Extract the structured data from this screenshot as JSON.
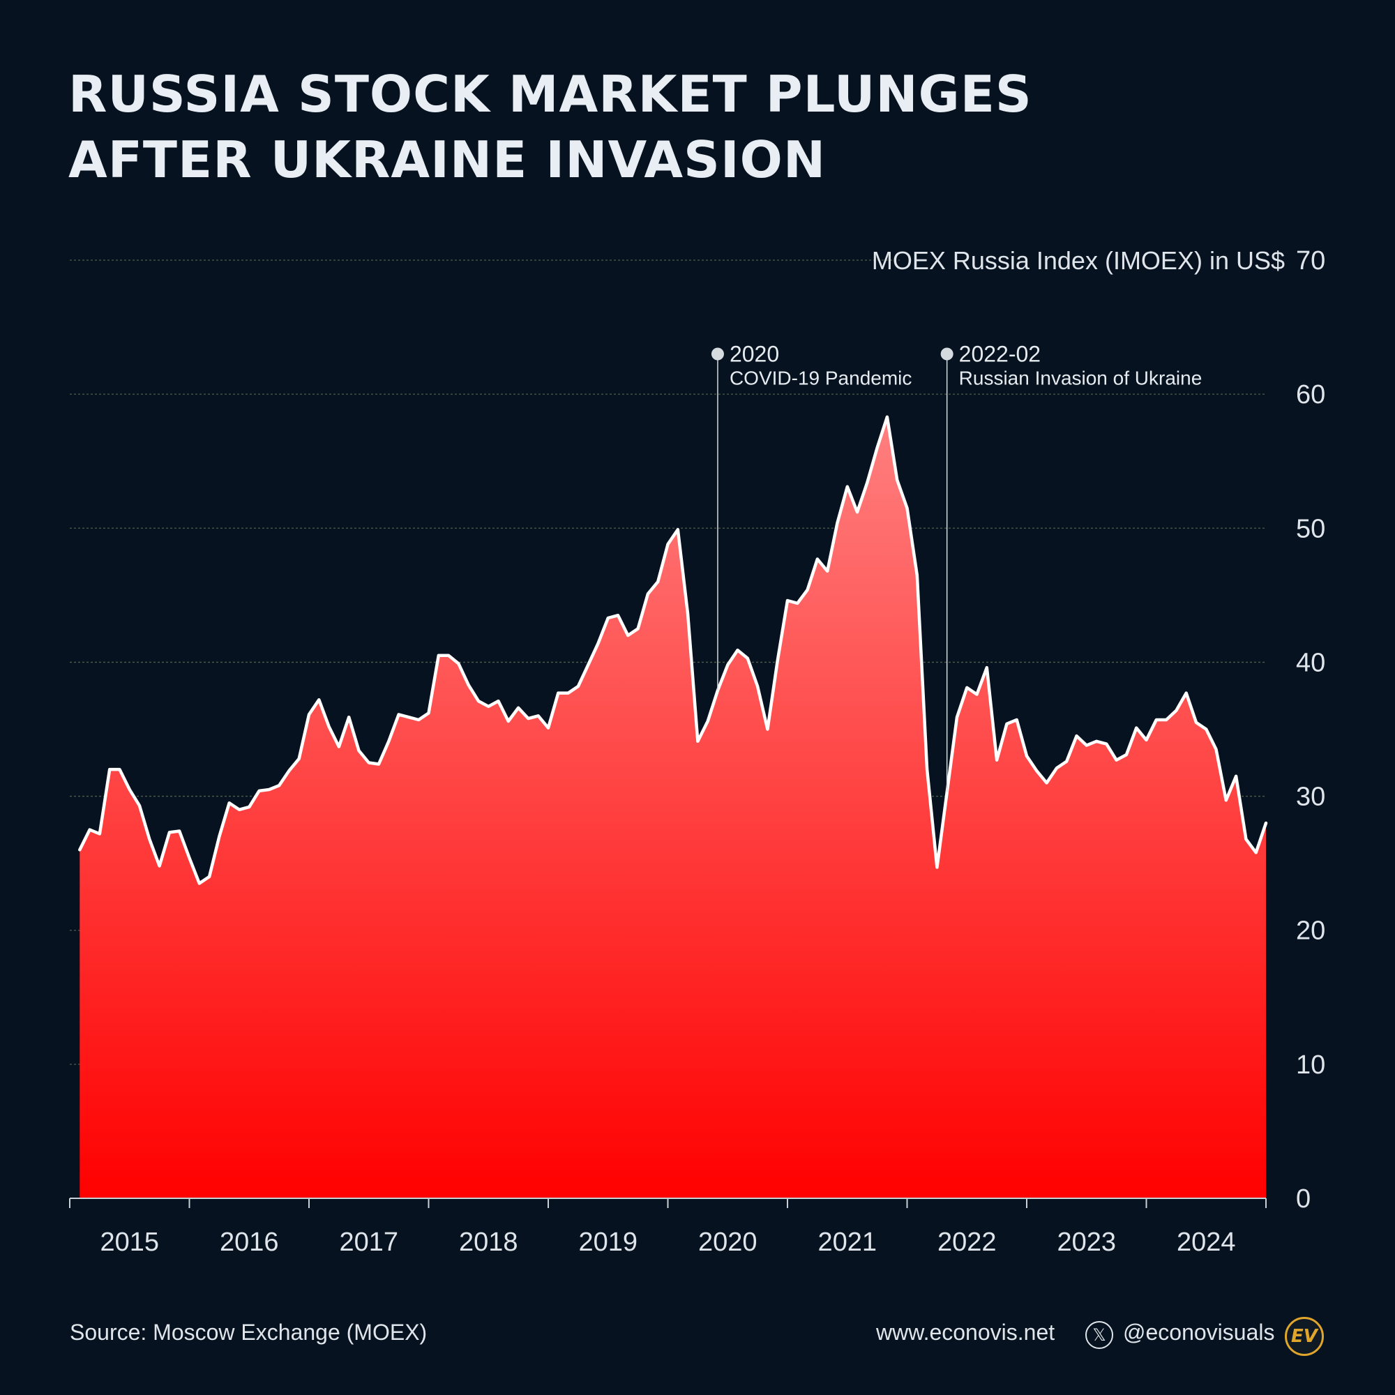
{
  "title_lines": [
    "RUSSIA STOCK MARKET PLUNGES",
    "AFTER UKRAINE INVASION"
  ],
  "footer": {
    "source": "Source: Moscow Exchange (MOEX)",
    "website": "www.econovis.net",
    "handle": "@econovisuals",
    "x_icon": "x-logo-icon",
    "logo": "EV"
  },
  "chart_data": {
    "type": "area",
    "title": "RUSSIA STOCK MARKET PLUNGES AFTER UKRAINE INVASION",
    "ylabel": "MOEX Russia Index (IMOEX) in US$",
    "xlabel": "",
    "ylim": [
      0,
      70
    ],
    "yticks": [
      0,
      10,
      20,
      30,
      40,
      50,
      60,
      70
    ],
    "xlim": [
      "2014-10",
      "2024-10"
    ],
    "year_labels": [
      "2015",
      "2016",
      "2017",
      "2018",
      "2019",
      "2020",
      "2021",
      "2022",
      "2023",
      "2024"
    ],
    "grid": true,
    "line_color": "#ffffff",
    "fill_top_color": "#ff8080",
    "fill_bottom_color": "#ff0000",
    "x": [
      "2014-11",
      "2014-12",
      "2015-01",
      "2015-02",
      "2015-03",
      "2015-04",
      "2015-05",
      "2015-06",
      "2015-07",
      "2015-08",
      "2015-09",
      "2015-10",
      "2015-11",
      "2015-12",
      "2016-01",
      "2016-02",
      "2016-03",
      "2016-04",
      "2016-05",
      "2016-06",
      "2016-07",
      "2016-08",
      "2016-09",
      "2016-10",
      "2016-11",
      "2016-12",
      "2017-01",
      "2017-02",
      "2017-03",
      "2017-04",
      "2017-05",
      "2017-06",
      "2017-07",
      "2017-08",
      "2017-09",
      "2017-10",
      "2017-11",
      "2017-12",
      "2018-01",
      "2018-02",
      "2018-03",
      "2018-04",
      "2018-05",
      "2018-06",
      "2018-07",
      "2018-08",
      "2018-09",
      "2018-10",
      "2018-11",
      "2018-12",
      "2019-01",
      "2019-02",
      "2019-03",
      "2019-04",
      "2019-05",
      "2019-06",
      "2019-07",
      "2019-08",
      "2019-09",
      "2019-10",
      "2019-11",
      "2019-12",
      "2020-01",
      "2020-02",
      "2020-03",
      "2020-04",
      "2020-05",
      "2020-06",
      "2020-07",
      "2020-08",
      "2020-09",
      "2020-10",
      "2020-11",
      "2020-12",
      "2021-01",
      "2021-02",
      "2021-03",
      "2021-04",
      "2021-05",
      "2021-06",
      "2021-07",
      "2021-08",
      "2021-09",
      "2021-10",
      "2021-11",
      "2021-12",
      "2022-01",
      "2022-02",
      "2022-03",
      "2022-04",
      "2022-05",
      "2022-06",
      "2022-07",
      "2022-08",
      "2022-09",
      "2022-10",
      "2022-11",
      "2022-12",
      "2023-01",
      "2023-02",
      "2023-03",
      "2023-04",
      "2023-05",
      "2023-06",
      "2023-07",
      "2023-08",
      "2023-09",
      "2023-10",
      "2023-11",
      "2023-12",
      "2024-01",
      "2024-02",
      "2024-03",
      "2024-04",
      "2024-05",
      "2024-06",
      "2024-07",
      "2024-08",
      "2024-09",
      "2024-10"
    ],
    "values": [
      26,
      27.5,
      27.2,
      32,
      32,
      30.5,
      29.3,
      26.8,
      24.8,
      27.3,
      27.4,
      25.4,
      23.5,
      24,
      27,
      29.5,
      29,
      29.2,
      30.4,
      30.5,
      30.8,
      31.9,
      32.8,
      36.1,
      37.2,
      35.2,
      33.7,
      35.9,
      33.4,
      32.5,
      32.4,
      34.1,
      36.1,
      35.9,
      35.7,
      36.2,
      40.5,
      40.5,
      39.9,
      38.3,
      37.1,
      36.7,
      37.1,
      35.6,
      36.6,
      35.8,
      36,
      35.1,
      37.7,
      37.7,
      38.2,
      39.8,
      41.4,
      43.3,
      43.5,
      42,
      42.5,
      45.1,
      46,
      48.8,
      49.9,
      43.6,
      34.1,
      35.6,
      37.9,
      39.8,
      40.9,
      40.3,
      38.2,
      35,
      40.1,
      44.6,
      44.4,
      45.4,
      47.7,
      46.8,
      50.4,
      53.1,
      51.2,
      53.4,
      56,
      58.3,
      53.6,
      51.5,
      46.5,
      32,
      24.7,
      30.3,
      35.9,
      38.1,
      37.6,
      39.6,
      32.7,
      35.4,
      35.7,
      33,
      31.9,
      31,
      32.1,
      32.6,
      34.5,
      33.8,
      34.1,
      33.9,
      32.7,
      33.1,
      35.1,
      34.2,
      35.7,
      35.7,
      36.4,
      37.7,
      35.5,
      35,
      33.5,
      29.7,
      31.5,
      26.8,
      25.8,
      28
    ]
  },
  "annotations": [
    {
      "date": "2020-03",
      "year": "2020",
      "label": "COVID-19 Pandemic"
    },
    {
      "date": "2022-02",
      "year": "2022-02",
      "label": "Russian Invasion of Ukraine"
    }
  ]
}
